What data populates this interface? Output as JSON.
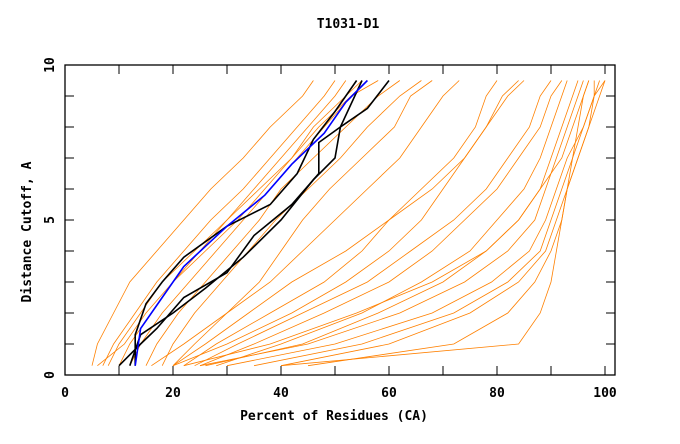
{
  "chart_data": {
    "type": "line",
    "title": "T1031-D1",
    "xlabel": "Percent of Residues (CA)",
    "ylabel": "Distance Cutoff, A",
    "xlim": [
      0,
      100
    ],
    "ylim": [
      0,
      10
    ],
    "xticks": [
      "0",
      "20",
      "40",
      "60",
      "80",
      "100"
    ],
    "yticks": [
      "0",
      "5",
      "10"
    ],
    "grid": false,
    "legend": "none",
    "colors": {
      "models": "#ff8000",
      "highlight": "#000000",
      "best": "#0000ff"
    },
    "cutoffs": [
      0.3,
      1,
      2,
      3,
      4,
      5,
      6,
      7,
      8,
      9,
      9.5
    ],
    "orange_series": [
      [
        5,
        6,
        9,
        12,
        17,
        22,
        27,
        33,
        38,
        44,
        46
      ],
      [
        7,
        9,
        13,
        17,
        22,
        27,
        33,
        38,
        43,
        48,
        50
      ],
      [
        10,
        12,
        16,
        20,
        25,
        30,
        35,
        40,
        45,
        50,
        52
      ],
      [
        12,
        14,
        18,
        23,
        28,
        33,
        38,
        43,
        48,
        53,
        56
      ],
      [
        15,
        17,
        21,
        26,
        31,
        36,
        40,
        46,
        52,
        58,
        62
      ],
      [
        18,
        20,
        24,
        29,
        34,
        39,
        45,
        51,
        56,
        62,
        66
      ],
      [
        20,
        24,
        30,
        36,
        40,
        44,
        49,
        55,
        61,
        64,
        68
      ],
      [
        22,
        28,
        38,
        48,
        55,
        60,
        66,
        72,
        76,
        78,
        80
      ],
      [
        25,
        35,
        48,
        60,
        68,
        74,
        80,
        84,
        88,
        90,
        92
      ],
      [
        28,
        40,
        55,
        66,
        75,
        80,
        85,
        88,
        90,
        92,
        93
      ],
      [
        22,
        38,
        54,
        68,
        78,
        84,
        88,
        90,
        92,
        94,
        95
      ],
      [
        25,
        45,
        62,
        74,
        82,
        87,
        89,
        91,
        93,
        95,
        96
      ],
      [
        30,
        50,
        68,
        79,
        86,
        89,
        91,
        93,
        96,
        98,
        98
      ],
      [
        35,
        55,
        72,
        82,
        88,
        90,
        92,
        94,
        96,
        98,
        100
      ],
      [
        40,
        60,
        75,
        84,
        89,
        91,
        93,
        95,
        97,
        99,
        100
      ],
      [
        26,
        44,
        58,
        70,
        78,
        84,
        88,
        92,
        94,
        96,
        97
      ],
      [
        45,
        72,
        82,
        87,
        90,
        92,
        93,
        95,
        97,
        98,
        99
      ],
      [
        40,
        84,
        88,
        90,
        91,
        92,
        93,
        94,
        95,
        96,
        97
      ],
      [
        20,
        26,
        34,
        42,
        52,
        60,
        68,
        74,
        78,
        82,
        85
      ],
      [
        24,
        32,
        44,
        56,
        64,
        72,
        78,
        82,
        86,
        88,
        90
      ],
      [
        8,
        10,
        14,
        18,
        24,
        30,
        36,
        42,
        46,
        52,
        55
      ],
      [
        6,
        11,
        15,
        20,
        26,
        32,
        37,
        42,
        47,
        53,
        58
      ],
      [
        16,
        22,
        30,
        38,
        44,
        50,
        56,
        62,
        66,
        70,
        73
      ],
      [
        20,
        30,
        42,
        52,
        60,
        66,
        70,
        74,
        78,
        81,
        84
      ]
    ],
    "black_series": [
      [
        [
          13,
          0.3
        ],
        [
          13,
          1.3
        ],
        [
          15,
          2.3
        ],
        [
          18,
          3
        ],
        [
          22,
          3.8
        ],
        [
          30,
          4.8
        ],
        [
          38,
          5.5
        ],
        [
          43,
          6.5
        ],
        [
          46,
          7.6
        ],
        [
          50,
          8.5
        ],
        [
          54,
          9.5
        ]
      ],
      [
        [
          10,
          0.3
        ],
        [
          14,
          1
        ],
        [
          17,
          1.5
        ],
        [
          22,
          2.5
        ],
        [
          30,
          3.3
        ],
        [
          35,
          4.5
        ],
        [
          42,
          5.5
        ],
        [
          47,
          6.5
        ],
        [
          47,
          7.5
        ],
        [
          51,
          8
        ],
        [
          55,
          9.5
        ]
      ],
      [
        [
          12,
          0.3
        ],
        [
          14,
          1.3
        ],
        [
          20,
          2
        ],
        [
          26,
          2.8
        ],
        [
          33,
          3.8
        ],
        [
          40,
          5
        ],
        [
          46,
          6.3
        ],
        [
          50,
          7
        ],
        [
          51,
          8
        ],
        [
          56,
          8.6
        ],
        [
          60,
          9.5
        ]
      ]
    ],
    "blue_series": [
      [
        13,
        0.3
      ],
      [
        14,
        1.5
      ],
      [
        18,
        2.5
      ],
      [
        22,
        3.5
      ],
      [
        30,
        4.8
      ],
      [
        37,
        5.8
      ],
      [
        42,
        6.8
      ],
      [
        48,
        7.8
      ],
      [
        52,
        8.8
      ],
      [
        56,
        9.5
      ]
    ]
  }
}
